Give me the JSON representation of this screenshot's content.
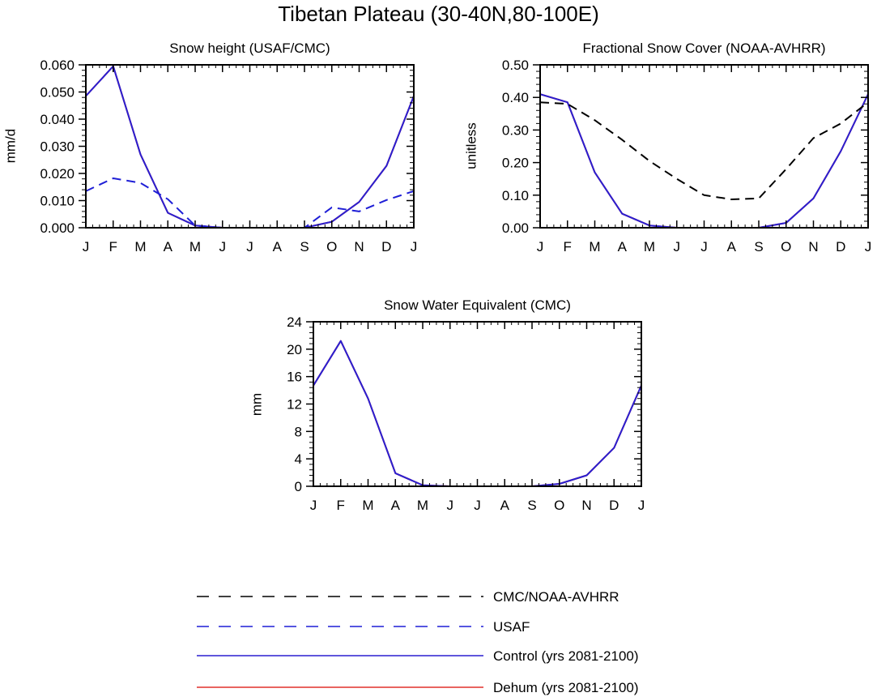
{
  "figure": {
    "title": "Tibetan Plateau (30-40N,80-100E)"
  },
  "legend": {
    "placement": "bottom-center",
    "entries": [
      {
        "label": "CMC/NOAA-AVHRR",
        "color": "#000000",
        "style": "dashed"
      },
      {
        "label": "USAF",
        "color": "#1f1fd6",
        "style": "dashed"
      },
      {
        "label": "Control (yrs 2081-2100)",
        "color": "#2a1fd0",
        "style": "solid"
      },
      {
        "label": "Dehum (yrs 2081-2100)",
        "color": "#e0302c",
        "style": "solid"
      }
    ]
  },
  "chart_data": [
    {
      "type": "line",
      "title": "Snow height (USAF/CMC)",
      "xlabel": "",
      "ylabel": "mm/d",
      "x": [
        "J",
        "F",
        "M",
        "A",
        "M",
        "J",
        "J",
        "A",
        "S",
        "O",
        "N",
        "D",
        "J"
      ],
      "ylim": [
        0,
        0.06
      ],
      "yticks": [
        "0.000",
        "0.010",
        "0.020",
        "0.030",
        "0.040",
        "0.050",
        "0.060"
      ],
      "grid": false,
      "series": [
        {
          "name": "USAF",
          "style": "dashed",
          "color": "#1f1fd6",
          "values": [
            0.0135,
            0.0182,
            0.0165,
            0.0105,
            0.0008,
            0.0,
            0.0,
            0.0,
            0.0,
            0.0075,
            0.006,
            0.0102,
            0.0135
          ]
        },
        {
          "name": "Control (yrs 2081-2100)",
          "style": "solid",
          "color": "#2a1fd0",
          "values": [
            0.0485,
            0.0595,
            0.027,
            0.0055,
            0.0008,
            0.0,
            0.0,
            0.0,
            0.0,
            0.0022,
            0.0095,
            0.0228,
            0.0485
          ]
        },
        {
          "name": "Dehum (yrs 2081-2100)",
          "style": "solid",
          "color": "#e0302c",
          "values": [
            0.0485,
            0.0595,
            0.027,
            0.0055,
            0.0008,
            0.0,
            0.0,
            0.0,
            0.0,
            0.0022,
            0.0095,
            0.0228,
            0.0485
          ]
        }
      ]
    },
    {
      "type": "line",
      "title": "Fractional Snow Cover (NOAA-AVHRR)",
      "xlabel": "",
      "ylabel": "unitless",
      "x": [
        "J",
        "F",
        "M",
        "A",
        "M",
        "J",
        "J",
        "A",
        "S",
        "O",
        "N",
        "D",
        "J"
      ],
      "ylim": [
        0,
        0.5
      ],
      "yticks": [
        "0.00",
        "0.10",
        "0.20",
        "0.30",
        "0.40",
        "0.50"
      ],
      "grid": false,
      "series": [
        {
          "name": "CMC/NOAA-AVHRR",
          "style": "dashed",
          "color": "#000000",
          "values": [
            0.385,
            0.38,
            0.33,
            0.27,
            0.205,
            0.15,
            0.1,
            0.087,
            0.09,
            0.18,
            0.275,
            0.32,
            0.385
          ]
        },
        {
          "name": "Control (yrs 2081-2100)",
          "style": "solid",
          "color": "#2a1fd0",
          "values": [
            0.41,
            0.385,
            0.17,
            0.043,
            0.007,
            0.0,
            0.0,
            0.0,
            0.0,
            0.015,
            0.09,
            0.235,
            0.41
          ]
        },
        {
          "name": "Dehum (yrs 2081-2100)",
          "style": "solid",
          "color": "#e0302c",
          "values": [
            0.41,
            0.385,
            0.17,
            0.043,
            0.007,
            0.0,
            0.0,
            0.0,
            0.0,
            0.015,
            0.09,
            0.235,
            0.41
          ]
        }
      ]
    },
    {
      "type": "line",
      "title": "Snow Water Equivalent (CMC)",
      "xlabel": "",
      "ylabel": "mm",
      "x": [
        "J",
        "F",
        "M",
        "A",
        "M",
        "J",
        "J",
        "A",
        "S",
        "O",
        "N",
        "D",
        "J"
      ],
      "ylim": [
        0,
        24
      ],
      "yticks": [
        "0",
        "4",
        "8",
        "12",
        "16",
        "20",
        "24"
      ],
      "grid": false,
      "series": [
        {
          "name": "CMC/NOAA-AVHRR",
          "style": "dashed",
          "color": "#000000",
          "values": [
            0,
            0,
            0,
            0,
            0,
            0,
            0,
            0,
            0,
            0,
            0,
            0,
            0
          ]
        },
        {
          "name": "Control (yrs 2081-2100)",
          "style": "solid",
          "color": "#2a1fd0",
          "values": [
            14.7,
            21.2,
            12.8,
            1.9,
            0.15,
            0.0,
            0.0,
            0.0,
            0.0,
            0.35,
            1.6,
            5.6,
            14.7
          ]
        },
        {
          "name": "Dehum (yrs 2081-2100)",
          "style": "solid",
          "color": "#e0302c",
          "values": [
            14.7,
            21.2,
            12.8,
            1.9,
            0.15,
            0.0,
            0.0,
            0.0,
            0.0,
            0.35,
            1.6,
            5.6,
            14.7
          ]
        }
      ]
    }
  ]
}
